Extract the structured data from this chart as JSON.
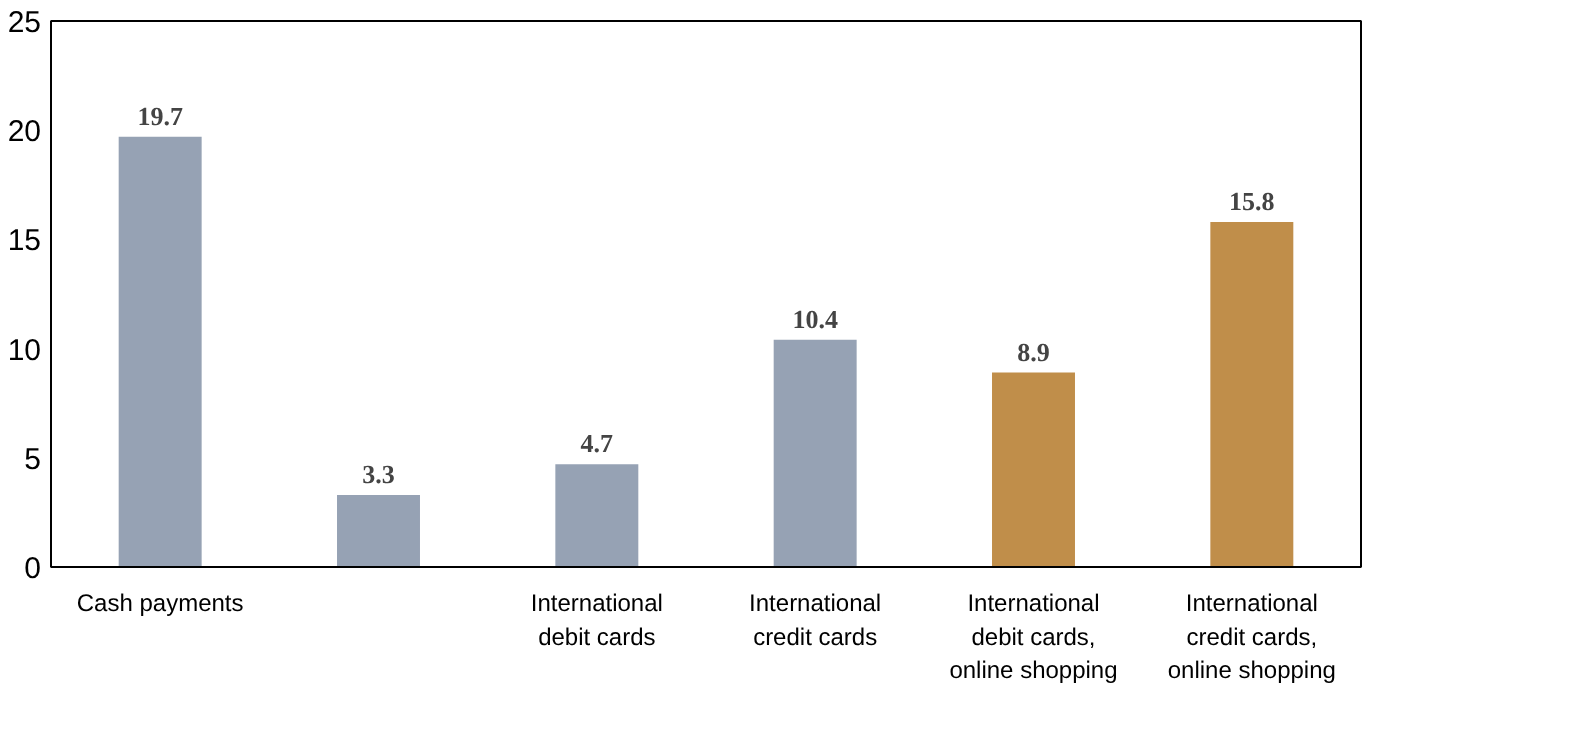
{
  "chart_data": {
    "type": "bar",
    "categories": [
      "Cash payments",
      null,
      "International\ndebit cards",
      "International\ncredit cards",
      "International\ndebit cards,\nonline shopping",
      "International\ncredit cards,\nonline shopping"
    ],
    "values": [
      19.7,
      3.3,
      4.7,
      10.4,
      8.9,
      15.8
    ],
    "colors": [
      "#96a2b4",
      "#96a2b4",
      "#96a2b4",
      "#96a2b4",
      "#c08e4a",
      "#c08e4a"
    ],
    "ylim": [
      0,
      25
    ],
    "yticks": [
      0,
      5,
      10,
      15,
      20,
      25
    ],
    "grid": false,
    "data_labels": true
  }
}
